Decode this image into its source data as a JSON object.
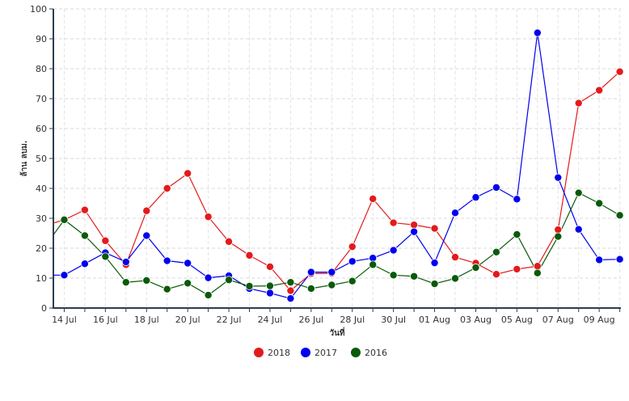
{
  "chart_data": {
    "type": "line",
    "title": "",
    "xlabel": "วันที่",
    "ylabel": "ล้าน ลบม.",
    "ylim": [
      0,
      100
    ],
    "yticks": [
      0,
      10,
      20,
      30,
      40,
      50,
      60,
      70,
      80,
      90,
      100
    ],
    "grid": true,
    "legend_placement": "bottom-center",
    "categories": [
      "13 Jul",
      "14 Jul",
      "15 Jul",
      "16 Jul",
      "17 Jul",
      "18 Jul",
      "19 Jul",
      "20 Jul",
      "21 Jul",
      "22 Jul",
      "23 Jul",
      "24 Jul",
      "25 Jul",
      "26 Jul",
      "27 Jul",
      "28 Jul",
      "29 Jul",
      "30 Jul",
      "31 Jul",
      "01 Aug",
      "02 Aug",
      "03 Aug",
      "04 Aug",
      "05 Aug",
      "06 Aug",
      "07 Aug",
      "08 Aug",
      "09 Aug",
      "10 Aug"
    ],
    "xtick_labels": [
      "14 Jul",
      "16 Jul",
      "18 Jul",
      "20 Jul",
      "22 Jul",
      "24 Jul",
      "26 Jul",
      "28 Jul",
      "30 Jul",
      "01 Aug",
      "03 Aug",
      "05 Aug",
      "07 Aug",
      "09 Aug"
    ],
    "series": [
      {
        "name": "2018",
        "color": "#e31a1c",
        "values": [
          27.5,
          29.5,
          32.8,
          22.5,
          14.5,
          32.5,
          40,
          45,
          30.5,
          22.2,
          17.6,
          13.8,
          5.8,
          11.5,
          11.6,
          20.5,
          36.5,
          28.5,
          27.8,
          26.6,
          17.0,
          15.0,
          11.3,
          13.0,
          14.0,
          26.2,
          68.5,
          72.8,
          79
        ]
      },
      {
        "name": "2017",
        "color": "#0000ee",
        "values": [
          11.0,
          11.0,
          14.8,
          18.5,
          15.4,
          24.2,
          15.8,
          15.0,
          10.1,
          10.8,
          6.5,
          5.0,
          3.2,
          12.0,
          12.0,
          15.6,
          16.7,
          19.3,
          25.5,
          15.1,
          31.8,
          37.0,
          40.3,
          36.4,
          92.0,
          43.6,
          26.3,
          16.1,
          16.3
        ]
      },
      {
        "name": "2016",
        "color": "#0a5a0a",
        "values": [
          20,
          29.5,
          24.2,
          17.2,
          8.6,
          9.2,
          6.3,
          8.3,
          4.3,
          9.4,
          7.3,
          7.4,
          8.6,
          6.5,
          7.7,
          9.0,
          14.5,
          11.0,
          10.6,
          8.1,
          9.9,
          13.5,
          18.7,
          24.6,
          11.7,
          23.9,
          38.5,
          35.0,
          31
        ]
      }
    ]
  }
}
